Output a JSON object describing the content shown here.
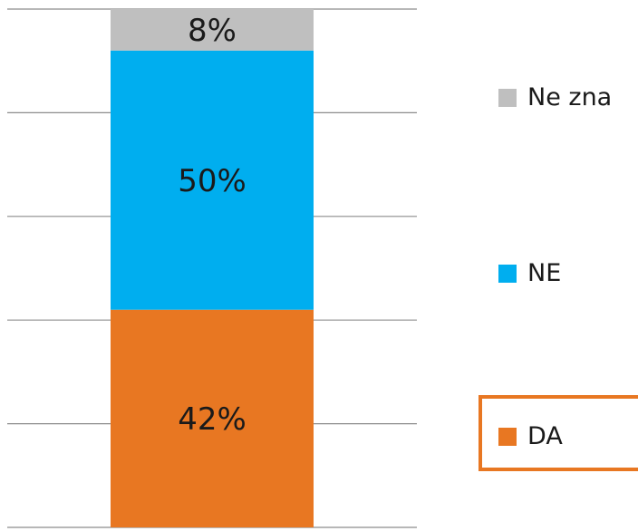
{
  "chart_data": {
    "type": "bar",
    "stacked": true,
    "categories": [
      ""
    ],
    "series": [
      {
        "name": "DA",
        "values": [
          42
        ],
        "label": "42%",
        "color": "#E87722"
      },
      {
        "name": "NE",
        "values": [
          50
        ],
        "label": "50%",
        "color": "#00AEEF"
      },
      {
        "name": "Ne zna",
        "values": [
          8
        ],
        "label": "8%",
        "color": "#BFBFBF"
      }
    ],
    "ylim": [
      0,
      100
    ],
    "grid": true,
    "highlighted_legend_entry": "DA"
  }
}
